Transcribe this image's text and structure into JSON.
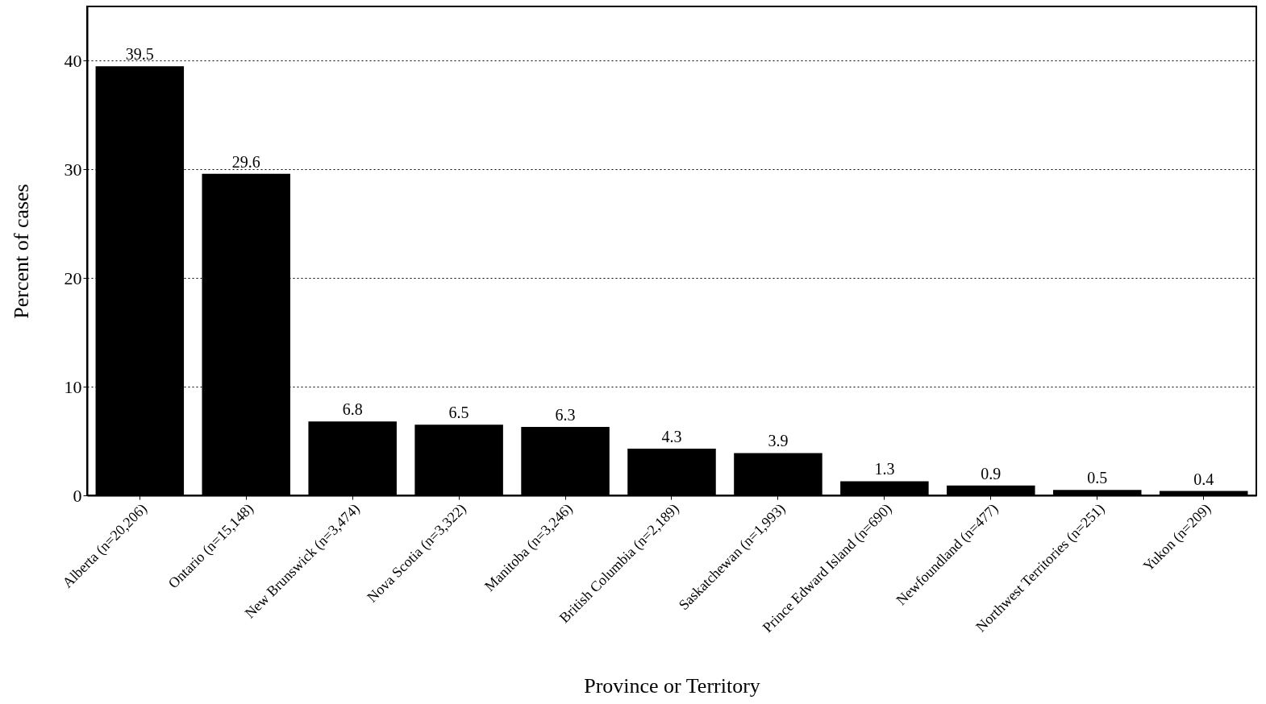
{
  "chart_data": {
    "type": "bar",
    "xlabel": "Province or Territory",
    "ylabel": "Percent of cases",
    "categories": [
      "Alberta (n=20,206)",
      "Ontario (n=15,148)",
      "New Brunswick (n=3,474)",
      "Nova Scotia (n=3,322)",
      "Manitoba (n=3,246)",
      "British Columbia (n=2,189)",
      "Saskatchewan (n=1,993)",
      "Prince Edward Island (n=690)",
      "Newfoundland (n=477)",
      "Northwest Territories (n=251)",
      "Yukon (n=209)"
    ],
    "values": [
      39.5,
      29.6,
      6.8,
      6.5,
      6.3,
      4.3,
      3.9,
      1.3,
      0.9,
      0.5,
      0.4
    ],
    "color": "#000000",
    "ylim": [
      0,
      45
    ],
    "yticks": [
      0,
      10,
      20,
      30,
      40
    ],
    "grid": "y",
    "data_labels": true
  }
}
